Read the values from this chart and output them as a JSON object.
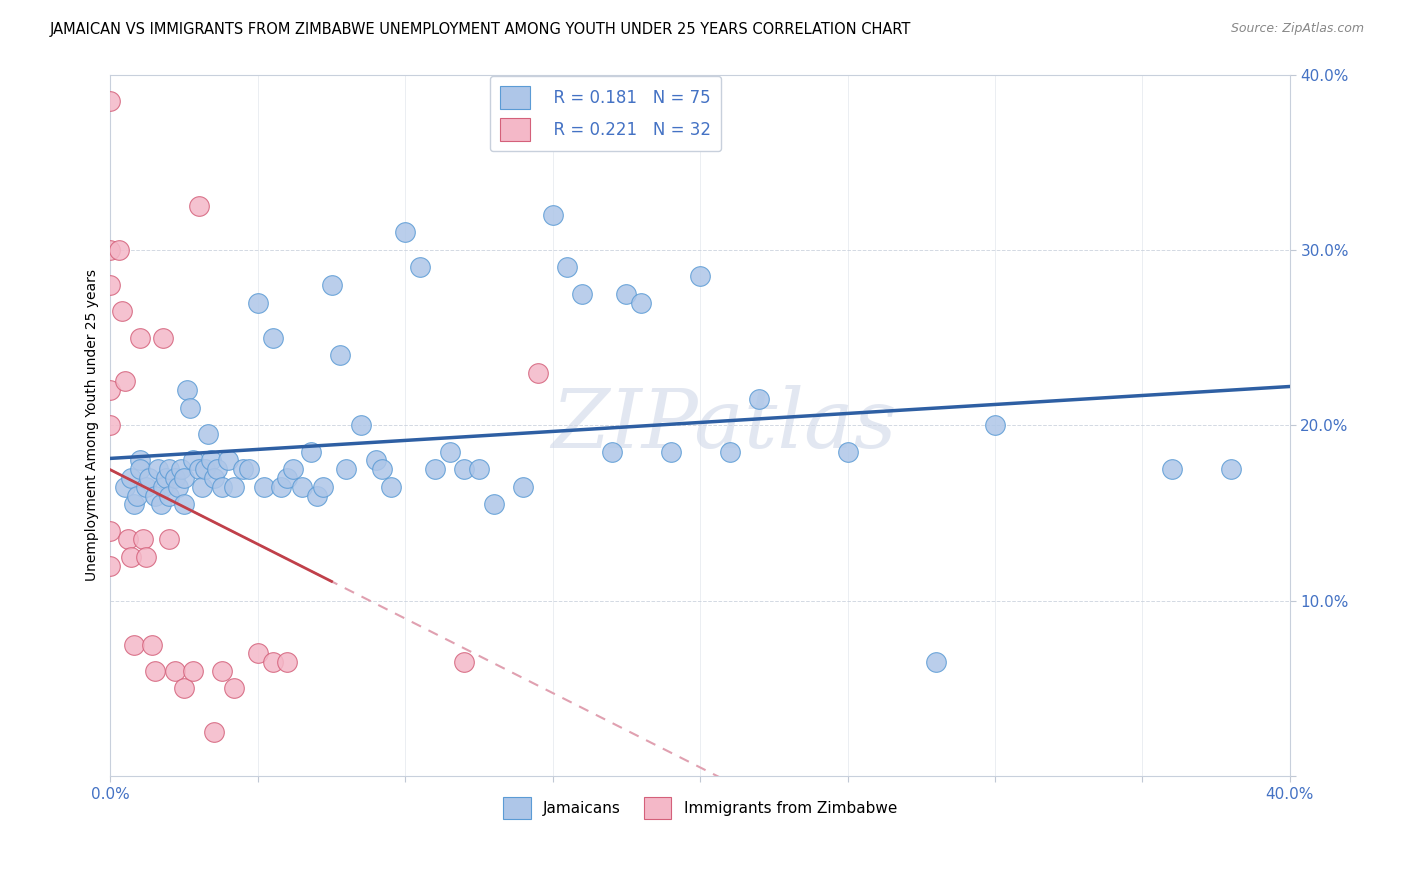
{
  "title": "JAMAICAN VS IMMIGRANTS FROM ZIMBABWE UNEMPLOYMENT AMONG YOUTH UNDER 25 YEARS CORRELATION CHART",
  "source": "Source: ZipAtlas.com",
  "ylabel": "Unemployment Among Youth under 25 years",
  "xlim": [
    0,
    0.4
  ],
  "ylim": [
    0,
    0.4
  ],
  "xticks": [
    0.0,
    0.05,
    0.1,
    0.15,
    0.2,
    0.25,
    0.3,
    0.35,
    0.4
  ],
  "yticks": [
    0.0,
    0.1,
    0.2,
    0.3,
    0.4
  ],
  "xtick_labels_show": [
    "0.0%",
    "40.0%"
  ],
  "ytick_labels_show": [
    "10.0%",
    "20.0%",
    "30.0%",
    "40.0%"
  ],
  "watermark": "ZIPatlas",
  "legend_blue_r": "R = 0.181",
  "legend_blue_n": "N = 75",
  "legend_pink_r": "R = 0.221",
  "legend_pink_n": "N = 32",
  "blue_color": "#aec6e8",
  "blue_edge": "#5b9bd5",
  "pink_color": "#f4b8c8",
  "pink_edge": "#d4607a",
  "trend_blue_color": "#2e5fa3",
  "trend_pink_solid_color": "#c0404a",
  "trend_pink_dashed_color": "#e0a0b0",
  "blue_x": [
    0.005,
    0.007,
    0.008,
    0.009,
    0.01,
    0.01,
    0.012,
    0.013,
    0.015,
    0.016,
    0.017,
    0.018,
    0.019,
    0.02,
    0.02,
    0.022,
    0.023,
    0.024,
    0.025,
    0.025,
    0.026,
    0.027,
    0.028,
    0.03,
    0.031,
    0.032,
    0.033,
    0.034,
    0.035,
    0.036,
    0.038,
    0.04,
    0.042,
    0.045,
    0.047,
    0.05,
    0.052,
    0.055,
    0.058,
    0.06,
    0.062,
    0.065,
    0.068,
    0.07,
    0.072,
    0.075,
    0.078,
    0.08,
    0.085,
    0.09,
    0.092,
    0.095,
    0.1,
    0.105,
    0.11,
    0.115,
    0.12,
    0.125,
    0.13,
    0.14,
    0.15,
    0.155,
    0.16,
    0.17,
    0.175,
    0.18,
    0.19,
    0.2,
    0.21,
    0.22,
    0.25,
    0.28,
    0.3,
    0.36,
    0.38
  ],
  "blue_y": [
    0.165,
    0.17,
    0.155,
    0.16,
    0.18,
    0.175,
    0.165,
    0.17,
    0.16,
    0.175,
    0.155,
    0.165,
    0.17,
    0.175,
    0.16,
    0.17,
    0.165,
    0.175,
    0.155,
    0.17,
    0.22,
    0.21,
    0.18,
    0.175,
    0.165,
    0.175,
    0.195,
    0.18,
    0.17,
    0.175,
    0.165,
    0.18,
    0.165,
    0.175,
    0.175,
    0.27,
    0.165,
    0.25,
    0.165,
    0.17,
    0.175,
    0.165,
    0.185,
    0.16,
    0.165,
    0.28,
    0.24,
    0.175,
    0.2,
    0.18,
    0.175,
    0.165,
    0.31,
    0.29,
    0.175,
    0.185,
    0.175,
    0.175,
    0.155,
    0.165,
    0.32,
    0.29,
    0.275,
    0.185,
    0.275,
    0.27,
    0.185,
    0.285,
    0.185,
    0.215,
    0.185,
    0.065,
    0.2,
    0.175,
    0.175
  ],
  "pink_x": [
    0.0,
    0.0,
    0.0,
    0.0,
    0.0,
    0.0,
    0.0,
    0.003,
    0.004,
    0.005,
    0.006,
    0.007,
    0.008,
    0.01,
    0.011,
    0.012,
    0.014,
    0.015,
    0.018,
    0.02,
    0.022,
    0.025,
    0.028,
    0.03,
    0.035,
    0.038,
    0.042,
    0.05,
    0.055,
    0.06,
    0.12,
    0.145
  ],
  "pink_y": [
    0.385,
    0.3,
    0.28,
    0.22,
    0.2,
    0.14,
    0.12,
    0.3,
    0.265,
    0.225,
    0.135,
    0.125,
    0.075,
    0.25,
    0.135,
    0.125,
    0.075,
    0.06,
    0.25,
    0.135,
    0.06,
    0.05,
    0.06,
    0.325,
    0.025,
    0.06,
    0.05,
    0.07,
    0.065,
    0.065,
    0.065,
    0.23
  ]
}
